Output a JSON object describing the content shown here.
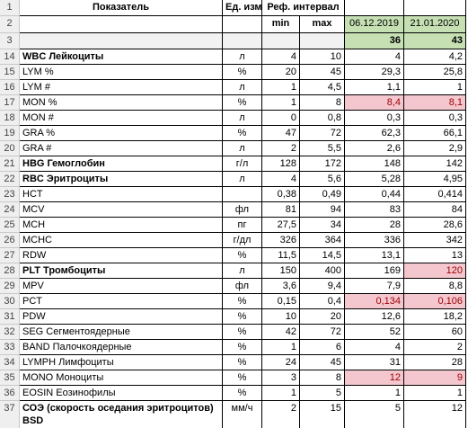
{
  "header": {
    "indicator": "Показатель",
    "unit": "Ед. изм.",
    "ref_interval": "Реф. интервал",
    "min": "min",
    "max": "max",
    "dates": [
      "06.12.2019",
      "21.01.2020"
    ],
    "counts": [
      "36",
      "43"
    ],
    "row_numbers": [
      "1",
      "2",
      "3"
    ]
  },
  "rows": [
    {
      "row_number": "14",
      "name": "WBC Лейкоциты",
      "bold": true,
      "unit": "л",
      "min": "4",
      "max": "10",
      "values": [
        "4",
        "4,2"
      ],
      "flagged": [
        false,
        false
      ]
    },
    {
      "row_number": "15",
      "name": "LYM %",
      "unit": "%",
      "min": "20",
      "max": "45",
      "values": [
        "29,3",
        "25,8"
      ],
      "flagged": [
        false,
        false
      ]
    },
    {
      "row_number": "16",
      "name": "LYM #",
      "unit": "л",
      "min": "1",
      "max": "4,5",
      "values": [
        "1,1",
        "1"
      ],
      "flagged": [
        false,
        false
      ]
    },
    {
      "row_number": "17",
      "name": "MON %",
      "unit": "%",
      "min": "1",
      "max": "8",
      "values": [
        "8,4",
        "8,1"
      ],
      "flagged": [
        true,
        true
      ]
    },
    {
      "row_number": "18",
      "name": "MON #",
      "unit": "л",
      "min": "0",
      "max": "0,8",
      "values": [
        "0,3",
        "0,3"
      ],
      "flagged": [
        false,
        false
      ]
    },
    {
      "row_number": "19",
      "name": "GRA %",
      "unit": "%",
      "min": "47",
      "max": "72",
      "values": [
        "62,3",
        "66,1"
      ],
      "flagged": [
        false,
        false
      ]
    },
    {
      "row_number": "20",
      "name": "GRA #",
      "unit": "л",
      "min": "2",
      "max": "5,5",
      "values": [
        "2,6",
        "2,9"
      ],
      "flagged": [
        false,
        false
      ]
    },
    {
      "row_number": "21",
      "name": "HBG Гемоглобин",
      "bold": true,
      "unit": "г/л",
      "min": "128",
      "max": "172",
      "values": [
        "148",
        "142"
      ],
      "flagged": [
        false,
        false
      ]
    },
    {
      "row_number": "22",
      "name": "RBC Эритроциты",
      "bold": true,
      "unit": "л",
      "min": "4",
      "max": "5,6",
      "values": [
        "5,28",
        "4,95"
      ],
      "flagged": [
        false,
        false
      ]
    },
    {
      "row_number": "23",
      "name": "HCT",
      "min": "0,38",
      "max": "0,49",
      "values": [
        "0,44",
        "0,414"
      ],
      "flagged": [
        false,
        false
      ]
    },
    {
      "row_number": "24",
      "name": "MCV",
      "unit": "фл",
      "min": "81",
      "max": "94",
      "values": [
        "83",
        "84"
      ],
      "flagged": [
        false,
        false
      ]
    },
    {
      "row_number": "25",
      "name": "MCH",
      "unit": "пг",
      "min": "27,5",
      "max": "34",
      "values": [
        "28",
        "28,6"
      ],
      "flagged": [
        false,
        false
      ]
    },
    {
      "row_number": "26",
      "name": "MCHC",
      "unit": "г/дл",
      "min": "326",
      "max": "364",
      "values": [
        "336",
        "342"
      ],
      "flagged": [
        false,
        false
      ]
    },
    {
      "row_number": "27",
      "name": "RDW",
      "unit": "%",
      "min": "11,5",
      "max": "14,5",
      "values": [
        "13,1",
        "13"
      ],
      "flagged": [
        false,
        false
      ]
    },
    {
      "row_number": "28",
      "name": "PLT Тромбоциты",
      "bold": true,
      "unit": "л",
      "min": "150",
      "max": "400",
      "values": [
        "169",
        "120"
      ],
      "flagged": [
        false,
        true
      ]
    },
    {
      "row_number": "29",
      "name": "MPV",
      "unit": "фл",
      "min": "3,6",
      "max": "9,4",
      "values": [
        "7,9",
        "8,8"
      ],
      "flagged": [
        false,
        false
      ]
    },
    {
      "row_number": "30",
      "name": "PCT",
      "unit": "%",
      "min": "0,15",
      "max": "0,4",
      "values": [
        "0,134",
        "0,106"
      ],
      "flagged": [
        true,
        true
      ]
    },
    {
      "row_number": "31",
      "name": "PDW",
      "unit": "%",
      "min": "10",
      "max": "20",
      "values": [
        "12,6",
        "18,2"
      ],
      "flagged": [
        false,
        false
      ]
    },
    {
      "row_number": "32",
      "name": "SEG Сегментоядерные",
      "unit": "%",
      "min": "42",
      "max": "72",
      "values": [
        "52",
        "60"
      ],
      "flagged": [
        false,
        false
      ]
    },
    {
      "row_number": "33",
      "name": "BAND Палочкоядерные",
      "unit": "%",
      "min": "1",
      "max": "6",
      "values": [
        "4",
        "2"
      ],
      "flagged": [
        false,
        false
      ]
    },
    {
      "row_number": "34",
      "name": "LYMPH Лимфоциты",
      "unit": "%",
      "min": "24",
      "max": "45",
      "values": [
        "31",
        "28"
      ],
      "flagged": [
        false,
        false
      ]
    },
    {
      "row_number": "35",
      "name": "MONO Моноциты",
      "unit": "%",
      "min": "3",
      "max": "8",
      "values": [
        "12",
        "9"
      ],
      "flagged": [
        true,
        true
      ]
    },
    {
      "row_number": "36",
      "name": "EOSIN Еозинофилы",
      "unit": "%",
      "min": "1",
      "max": "5",
      "values": [
        "1",
        "1"
      ],
      "flagged": [
        false,
        false
      ]
    },
    {
      "row_number": "37",
      "name": "СОЭ (скорость оседания эритроцитов) BSD",
      "bold": true,
      "tall": true,
      "unit": "мм/ч",
      "min": "2",
      "max": "15",
      "values": [
        "5",
        "12"
      ],
      "flagged": [
        false,
        false
      ]
    }
  ]
}
